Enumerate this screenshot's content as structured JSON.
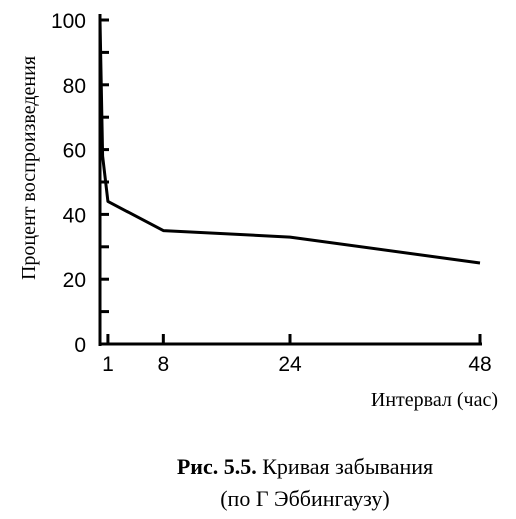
{
  "chart_data": {
    "type": "line",
    "xlabel": "Интервал (час)",
    "ylabel": "Процент воспроизведения",
    "x_ticks": [
      1,
      8,
      24,
      48
    ],
    "y_ticks": [
      0,
      20,
      40,
      60,
      80,
      100
    ],
    "xlim": [
      0,
      48
    ],
    "ylim": [
      0,
      100
    ],
    "grid": false,
    "series": [
      {
        "points": [
          {
            "x": 0,
            "y": 100
          },
          {
            "x": 0.33,
            "y": 58
          },
          {
            "x": 1,
            "y": 44
          },
          {
            "x": 8,
            "y": 35
          },
          {
            "x": 24,
            "y": 33
          },
          {
            "x": 48,
            "y": 25
          }
        ]
      }
    ]
  },
  "caption": {
    "number": "Рис. 5.5.",
    "title": "Кривая забывания",
    "subtitle": "(по Г  Эббингаузу)"
  }
}
